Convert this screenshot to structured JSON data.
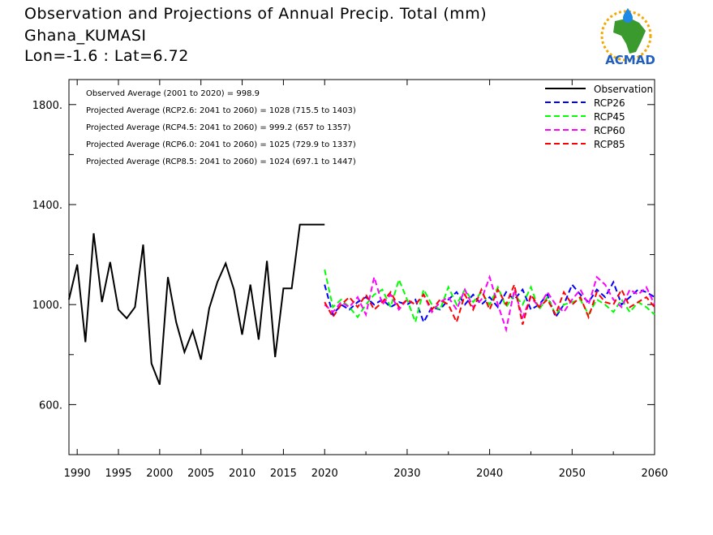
{
  "header": {
    "title": "Observation and Projections of Annual Precip. Total (mm)",
    "location": "Ghana_KUMASI",
    "coords": "Lon=-1.6 : Lat=6.72"
  },
  "logo": {
    "text": "ACMAD"
  },
  "chart_data": {
    "type": "line",
    "title": "Observation and Projections of Annual Precip. Total (mm)",
    "xlim": [
      1989,
      2060
    ],
    "ylim": [
      400,
      1900
    ],
    "x_ticks_left": [
      1990,
      1995,
      2000,
      2005,
      2010,
      2015
    ],
    "x_ticks_right": [
      2020,
      2030,
      2040,
      2050,
      2060
    ],
    "x_tick_labels_left": [
      "1990",
      "1995",
      "2000",
      "2005",
      "2010",
      "2015"
    ],
    "x_tick_labels_right": [
      "2020",
      "2030",
      "2040",
      "2050",
      "2060"
    ],
    "y_ticks": [
      600,
      1000,
      1400,
      1800
    ],
    "y_tick_labels": [
      "600.",
      "1000.",
      "1400.",
      "1800."
    ],
    "grid": false,
    "legend_position": "top-right",
    "annotations": [
      "Observed Average (2001 to 2020) = 998.9",
      "Projected Average (RCP2.6: 2041 to 2060) = 1028 (715.5 to 1403)",
      "Projected Average (RCP4.5: 2041 to 2060) = 999.2 (657 to 1357)",
      "Projected Average (RCP6.0: 2041 to 2060) = 1025 (729.9 to 1337)",
      "Projected Average (RCP8.5: 2041 to 2060) = 1024 (697.1 to 1447)"
    ],
    "series": [
      {
        "name": "Observation",
        "color": "#000000",
        "dash": "solid",
        "x": [
          1989,
          1990,
          1991,
          1992,
          1993,
          1994,
          1995,
          1996,
          1997,
          1998,
          1999,
          2000,
          2001,
          2002,
          2003,
          2004,
          2005,
          2006,
          2007,
          2008,
          2009,
          2010,
          2011,
          2012,
          2013,
          2014,
          2015,
          2016,
          2017,
          2018,
          2019,
          2020
        ],
        "values": [
          1020,
          1160,
          850,
          1285,
          1010,
          1170,
          980,
          945,
          990,
          1240,
          765,
          680,
          1110,
          930,
          810,
          895,
          780,
          985,
          1090,
          1165,
          1060,
          880,
          1080,
          860,
          1175,
          790,
          1065,
          1065,
          1320,
          1320,
          1320,
          1320
        ]
      },
      {
        "name": "RCP26",
        "color": "#0000ff",
        "dash": "dashed",
        "x": [
          2020,
          2021,
          2022,
          2023,
          2024,
          2025,
          2026,
          2027,
          2028,
          2029,
          2030,
          2031,
          2032,
          2033,
          2034,
          2035,
          2036,
          2037,
          2038,
          2039,
          2040,
          2041,
          2042,
          2043,
          2044,
          2045,
          2046,
          2047,
          2048,
          2049,
          2050,
          2051,
          2052,
          2053,
          2054,
          2055,
          2056,
          2057,
          2058,
          2059,
          2060
        ],
        "values": [
          1080,
          960,
          1000,
          980,
          1010,
          1030,
          1000,
          1020,
          990,
          1010,
          1000,
          1020,
          930,
          990,
          980,
          1020,
          1050,
          1000,
          1040,
          1000,
          1030,
          990,
          1050,
          1020,
          1060,
          980,
          1000,
          1040,
          950,
          1000,
          1080,
          1040,
          1010,
          1060,
          1030,
          1090,
          1000,
          1030,
          1060,
          1050,
          1030
        ]
      },
      {
        "name": "RCP45",
        "color": "#00ff00",
        "dash": "dashed",
        "x": [
          2020,
          2021,
          2022,
          2023,
          2024,
          2025,
          2026,
          2027,
          2028,
          2029,
          2030,
          2031,
          2032,
          2033,
          2034,
          2035,
          2036,
          2037,
          2038,
          2039,
          2040,
          2041,
          2042,
          2043,
          2044,
          2045,
          2046,
          2047,
          2048,
          2049,
          2050,
          2051,
          2052,
          2053,
          2054,
          2055,
          2056,
          2057,
          2058,
          2059,
          2060
        ],
        "values": [
          1140,
          990,
          1020,
          990,
          950,
          1000,
          1040,
          1060,
          990,
          1100,
          1020,
          930,
          1060,
          1000,
          980,
          1070,
          1000,
          1060,
          1010,
          1050,
          1000,
          1070,
          990,
          1040,
          1000,
          1070,
          980,
          1030,
          960,
          1000,
          1010,
          1020,
          960,
          1020,
          1000,
          970,
          1020,
          970,
          1010,
          990,
          960
        ]
      },
      {
        "name": "RCP60",
        "color": "#ff00ff",
        "dash": "dashed",
        "x": [
          2020,
          2021,
          2022,
          2023,
          2024,
          2025,
          2026,
          2027,
          2028,
          2029,
          2030,
          2031,
          2032,
          2033,
          2034,
          2035,
          2036,
          2037,
          2038,
          2039,
          2040,
          2041,
          2042,
          2043,
          2044,
          2045,
          2046,
          2047,
          2048,
          2049,
          2050,
          2051,
          2052,
          2053,
          2054,
          2055,
          2056,
          2057,
          2058,
          2059,
          2060
        ],
        "values": [
          1000,
          970,
          1010,
          990,
          1030,
          960,
          1110,
          1000,
          1040,
          980,
          1020,
          1000,
          1040,
          970,
          1010,
          1030,
          980,
          1060,
          990,
          1020,
          1110,
          1000,
          900,
          1060,
          950,
          1030,
          990,
          1050,
          1000,
          970,
          1020,
          1060,
          1000,
          1110,
          1080,
          1020,
          990,
          1060,
          1040,
          1070,
          1000
        ]
      },
      {
        "name": "RCP85",
        "color": "#ff0000",
        "dash": "dashed",
        "x": [
          2020,
          2021,
          2022,
          2023,
          2024,
          2025,
          2026,
          2027,
          2028,
          2029,
          2030,
          2031,
          2032,
          2033,
          2034,
          2035,
          2036,
          2037,
          2038,
          2039,
          2040,
          2041,
          2042,
          2043,
          2044,
          2045,
          2046,
          2047,
          2048,
          2049,
          2050,
          2051,
          2052,
          2053,
          2054,
          2055,
          2056,
          2057,
          2058,
          2059,
          2060
        ],
        "values": [
          1010,
          950,
          1000,
          1030,
          990,
          1040,
          980,
          1010,
          1050,
          990,
          1020,
          1000,
          1040,
          980,
          1020,
          1000,
          930,
          1040,
          980,
          1060,
          980,
          1060,
          1000,
          1080,
          920,
          1040,
          990,
          1020,
          960,
          1050,
          1000,
          1030,
          950,
          1050,
          1010,
          1000,
          1060,
          990,
          1010,
          1030,
          990
        ]
      }
    ]
  }
}
